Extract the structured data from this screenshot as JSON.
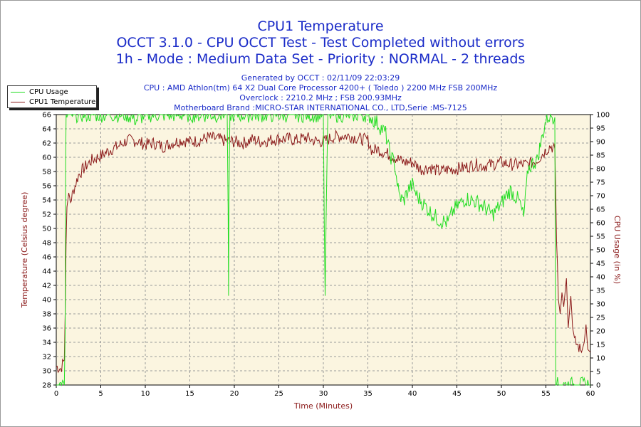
{
  "header": {
    "title": "CPU1 Temperature",
    "subtitle1": "OCCT 3.1.0 - CPU OCCT Test - Test Completed without errors",
    "subtitle2": "1h - Mode : Medium Data Set - Priority : NORMAL - 2 threads"
  },
  "info": {
    "generated": "Generated by OCCT : 02/11/09 22:03:29",
    "cpu": "CPU : AMD Athlon(tm) 64 X2 Dual Core Processor 4200+ ( Toledo ) 2200 MHz FSB 200MHz",
    "overclock": "Overclock : 2210.2 MHz ; FSB 200.93MHz",
    "motherboard": "Motherboard Brand :MICRO-STAR INTERNATIONAL CO., LTD,Serie :MS-7125"
  },
  "legend": {
    "cpu_usage": "CPU Usage",
    "cpu_temp": "CPU1 Temperature"
  },
  "chart_data": {
    "type": "line",
    "title": "CPU1 Temperature",
    "xlabel": "Time (Minutes)",
    "ylabel_left": "Temperature (Celsius degree)",
    "ylabel_right": "CPU Usage (in %)",
    "xlim": [
      0,
      60
    ],
    "ylim_left": [
      28,
      66
    ],
    "ylim_right": [
      0,
      100
    ],
    "x_ticks": [
      0,
      5,
      10,
      15,
      20,
      25,
      30,
      35,
      40,
      45,
      50,
      55,
      60
    ],
    "y_ticks_left": [
      28,
      30,
      32,
      34,
      36,
      38,
      40,
      42,
      44,
      46,
      48,
      50,
      52,
      54,
      56,
      58,
      60,
      62,
      64,
      66
    ],
    "y_ticks_right": [
      0,
      5,
      10,
      15,
      20,
      25,
      30,
      35,
      40,
      45,
      50,
      55,
      60,
      65,
      70,
      75,
      80,
      85,
      90,
      95,
      100
    ],
    "grid": true,
    "colors": {
      "temperature": "#8b1a1a",
      "usage": "#22dd22",
      "plot_bg": "#fbf5e0",
      "title": "#1a2bc8"
    },
    "series": [
      {
        "name": "CPU1 Temperature",
        "axis": "left",
        "points": [
          [
            0,
            30.6
          ],
          [
            0.5,
            30.3
          ],
          [
            0.9,
            31.5
          ],
          [
            1.0,
            38
          ],
          [
            1.1,
            48
          ],
          [
            1.2,
            53
          ],
          [
            1.4,
            55
          ],
          [
            1.6,
            53.8
          ],
          [
            2.0,
            55.6
          ],
          [
            2.5,
            57.5
          ],
          [
            3.0,
            58.3
          ],
          [
            3.5,
            59
          ],
          [
            4.0,
            59.6
          ],
          [
            5.0,
            60.2
          ],
          [
            6.0,
            61
          ],
          [
            7.0,
            61.6
          ],
          [
            8.0,
            62.4
          ],
          [
            9.0,
            62.3
          ],
          [
            10.0,
            61.8
          ],
          [
            11.0,
            62
          ],
          [
            12.0,
            61.5
          ],
          [
            13.0,
            62
          ],
          [
            14.0,
            62.4
          ],
          [
            15.0,
            62.2
          ],
          [
            16.0,
            62.3
          ],
          [
            17.0,
            62.8
          ],
          [
            18.0,
            62.6
          ],
          [
            19.0,
            62.3
          ],
          [
            20.0,
            62.2
          ],
          [
            21.0,
            62
          ],
          [
            22.0,
            62.5
          ],
          [
            23.0,
            62.2
          ],
          [
            24.0,
            62.4
          ],
          [
            25.0,
            62.6
          ],
          [
            26.0,
            62.6
          ],
          [
            27.0,
            62.4
          ],
          [
            28.0,
            62.8
          ],
          [
            29.0,
            62.3
          ],
          [
            30.0,
            62.2
          ],
          [
            31.0,
            62.8
          ],
          [
            32.0,
            63
          ],
          [
            33.0,
            63
          ],
          [
            34.0,
            62.6
          ],
          [
            35.0,
            62.4
          ],
          [
            35.5,
            60.8
          ],
          [
            36.0,
            61.2
          ],
          [
            37.0,
            60.6
          ],
          [
            38.0,
            60
          ],
          [
            39.0,
            59.3
          ],
          [
            40.0,
            59.3
          ],
          [
            41.0,
            58.3
          ],
          [
            42.0,
            58.6
          ],
          [
            43.0,
            58
          ],
          [
            44.0,
            58.3
          ],
          [
            45.0,
            58.4
          ],
          [
            46.0,
            58.6
          ],
          [
            47.0,
            59
          ],
          [
            48.0,
            58.8
          ],
          [
            49.0,
            59
          ],
          [
            50.0,
            59.3
          ],
          [
            51.0,
            59
          ],
          [
            52.0,
            59
          ],
          [
            53.0,
            59
          ],
          [
            54.0,
            59.6
          ],
          [
            55.0,
            61
          ],
          [
            55.5,
            61.6
          ],
          [
            56.0,
            61.2
          ],
          [
            56.1,
            55
          ],
          [
            56.2,
            48
          ],
          [
            56.3,
            45
          ],
          [
            56.4,
            40
          ],
          [
            56.6,
            38
          ],
          [
            56.8,
            41
          ],
          [
            57.0,
            39
          ],
          [
            57.3,
            43
          ],
          [
            57.5,
            36
          ],
          [
            57.8,
            40.5
          ],
          [
            58.0,
            36
          ],
          [
            58.3,
            34
          ],
          [
            58.6,
            33.5
          ],
          [
            59.0,
            32.6
          ],
          [
            59.3,
            34
          ],
          [
            59.5,
            36.5
          ],
          [
            59.7,
            33
          ],
          [
            60.0,
            32.6
          ]
        ]
      },
      {
        "name": "CPU Usage",
        "axis": "right",
        "points": [
          [
            0,
            0
          ],
          [
            0.9,
            0
          ],
          [
            1.0,
            20
          ],
          [
            1.05,
            80
          ],
          [
            1.1,
            100
          ],
          [
            2.5,
            100
          ],
          [
            5.0,
            100
          ],
          [
            8.0,
            100
          ],
          [
            9.0,
            98
          ],
          [
            10.0,
            100
          ],
          [
            12.0,
            100
          ],
          [
            14.0,
            100
          ],
          [
            15.0,
            100
          ],
          [
            18.0,
            100
          ],
          [
            19.2,
            100
          ],
          [
            19.3,
            65
          ],
          [
            19.35,
            33
          ],
          [
            19.4,
            70
          ],
          [
            19.5,
            100
          ],
          [
            22.0,
            100
          ],
          [
            25.0,
            100
          ],
          [
            28.0,
            100
          ],
          [
            30.0,
            100
          ],
          [
            30.1,
            60
          ],
          [
            30.2,
            33
          ],
          [
            30.3,
            60
          ],
          [
            30.5,
            100
          ],
          [
            33.0,
            100
          ],
          [
            35.0,
            100
          ],
          [
            36.0,
            97
          ],
          [
            37.0,
            93
          ],
          [
            37.5,
            85
          ],
          [
            38.0,
            82
          ],
          [
            38.5,
            70
          ],
          [
            39.0,
            68
          ],
          [
            39.5,
            72
          ],
          [
            40.0,
            74
          ],
          [
            40.5,
            70
          ],
          [
            41.0,
            68
          ],
          [
            42.0,
            64
          ],
          [
            43.0,
            61
          ],
          [
            44.0,
            60
          ],
          [
            44.5,
            64
          ],
          [
            45.0,
            66
          ],
          [
            46.0,
            69
          ],
          [
            47.0,
            68
          ],
          [
            48.0,
            66
          ],
          [
            49.0,
            63
          ],
          [
            50.0,
            67
          ],
          [
            50.5,
            70
          ],
          [
            51.0,
            72
          ],
          [
            52.0,
            68
          ],
          [
            52.5,
            62
          ],
          [
            53.0,
            80
          ],
          [
            53.5,
            82
          ],
          [
            54.0,
            83
          ],
          [
            55.0,
            98
          ],
          [
            55.5,
            100
          ],
          [
            56.0,
            99
          ],
          [
            56.05,
            50
          ],
          [
            56.1,
            0
          ],
          [
            60.0,
            0
          ]
        ]
      }
    ]
  }
}
